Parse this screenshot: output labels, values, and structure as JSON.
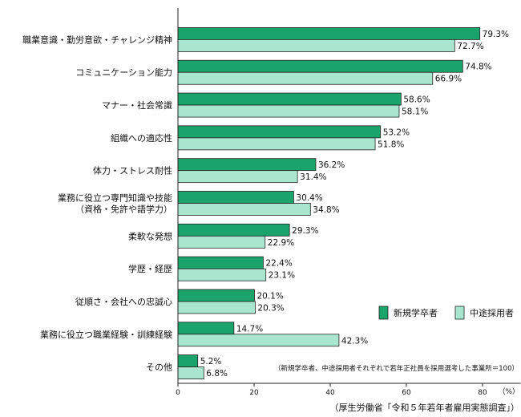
{
  "chart_data": {
    "type": "bar",
    "orientation": "horizontal",
    "categories": [
      [
        "職業意識・勤労意欲・チャレンジ精神"
      ],
      [
        "コミュニケーション能力"
      ],
      [
        "マナー・社会常識"
      ],
      [
        "組織への適応性"
      ],
      [
        "体力・ストレス耐性"
      ],
      [
        "業務に役立つ専門知識や技能",
        "（資格・免許や語学力）"
      ],
      [
        "柔軟な発想"
      ],
      [
        "学歴・経歴"
      ],
      [
        "従順さ・会社への忠誠心"
      ],
      [
        "業務に役立つ職業経験・訓練経験"
      ],
      [
        "その他"
      ]
    ],
    "series": [
      {
        "name": "新規学卒者",
        "color": "#1aa36a",
        "values": [
          79.3,
          74.8,
          58.6,
          53.2,
          36.2,
          30.4,
          29.3,
          22.4,
          20.1,
          14.7,
          5.2
        ],
        "labels": [
          "79.3%",
          "74.8%",
          "58.6%",
          "53.2%",
          "36.2%",
          "30.4%",
          "29.3%",
          "22.4%",
          "20.1%",
          "14.7%",
          "5.2%"
        ]
      },
      {
        "name": "中途採用者",
        "color": "#a8e6d0",
        "values": [
          72.7,
          66.9,
          58.1,
          51.8,
          31.4,
          34.8,
          22.9,
          23.1,
          20.3,
          42.3,
          6.8
        ],
        "labels": [
          "72.7%",
          "66.9%",
          "58.1%",
          "51.8%",
          "31.4%",
          "34.8%",
          "22.9%",
          "23.1%",
          "20.3%",
          "42.3%",
          "6.8%"
        ]
      }
    ],
    "xlim": [
      0,
      90
    ],
    "xticks": [
      "0",
      "20",
      "40",
      "60",
      "80"
    ],
    "xunit": "（%）",
    "legend_position": "bottom-right",
    "note": "（新規学卒者、中途採用者それぞれで若年正社員を採用選考した事業所＝100）",
    "source": "（厚生労働省「令和５年若年者雇用実態調査」）",
    "grid": false
  }
}
